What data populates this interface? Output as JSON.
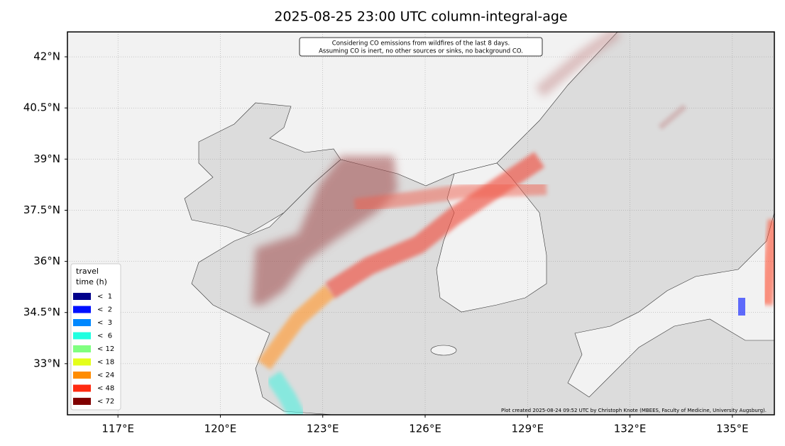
{
  "title": "2025-08-25 23:00 UTC column-integral-age",
  "note": [
    "Considering CO emissions from wildfires of the last 8 days.",
    "Assuming CO is inert, no other sources or sinks, no background CO."
  ],
  "credit": "Plot created 2025-08-24 09:52 UTC by Christoph Knote (MBEES, Faculty of Medicine, University Augsburg).",
  "lon_range": [
    115.52,
    136.23
  ],
  "lat_range": [
    31.5,
    42.73
  ],
  "lon_ticks": [
    {
      "value": 117,
      "label": "117°E"
    },
    {
      "value": 120,
      "label": "120°E"
    },
    {
      "value": 123,
      "label": "123°E"
    },
    {
      "value": 126,
      "label": "126°E"
    },
    {
      "value": 129,
      "label": "129°E"
    },
    {
      "value": 132,
      "label": "132°E"
    },
    {
      "value": 135,
      "label": "135°E"
    }
  ],
  "lat_ticks": [
    {
      "value": 33,
      "label": "33°N"
    },
    {
      "value": 34.5,
      "label": "34.5°N"
    },
    {
      "value": 36,
      "label": "36°N"
    },
    {
      "value": 37.5,
      "label": "37.5°N"
    },
    {
      "value": 39,
      "label": "39°N"
    },
    {
      "value": 40.5,
      "label": "40.5°N"
    },
    {
      "value": 42,
      "label": "42°N"
    }
  ],
  "legend": {
    "title": [
      "travel",
      "time (h)"
    ],
    "items": [
      {
        "label": "<  1",
        "color": "#00008b"
      },
      {
        "label": "<  2",
        "color": "#0010ff"
      },
      {
        "label": "<  3",
        "color": "#0088ff"
      },
      {
        "label": "<  6",
        "color": "#20ffe0"
      },
      {
        "label": "< 12",
        "color": "#80ff80"
      },
      {
        "label": "< 18",
        "color": "#e4ff1a"
      },
      {
        "label": "< 24",
        "color": "#ff8c00"
      },
      {
        "label": "< 48",
        "color": "#ff2a10"
      },
      {
        "label": "< 72",
        "color": "#800000"
      }
    ]
  }
}
